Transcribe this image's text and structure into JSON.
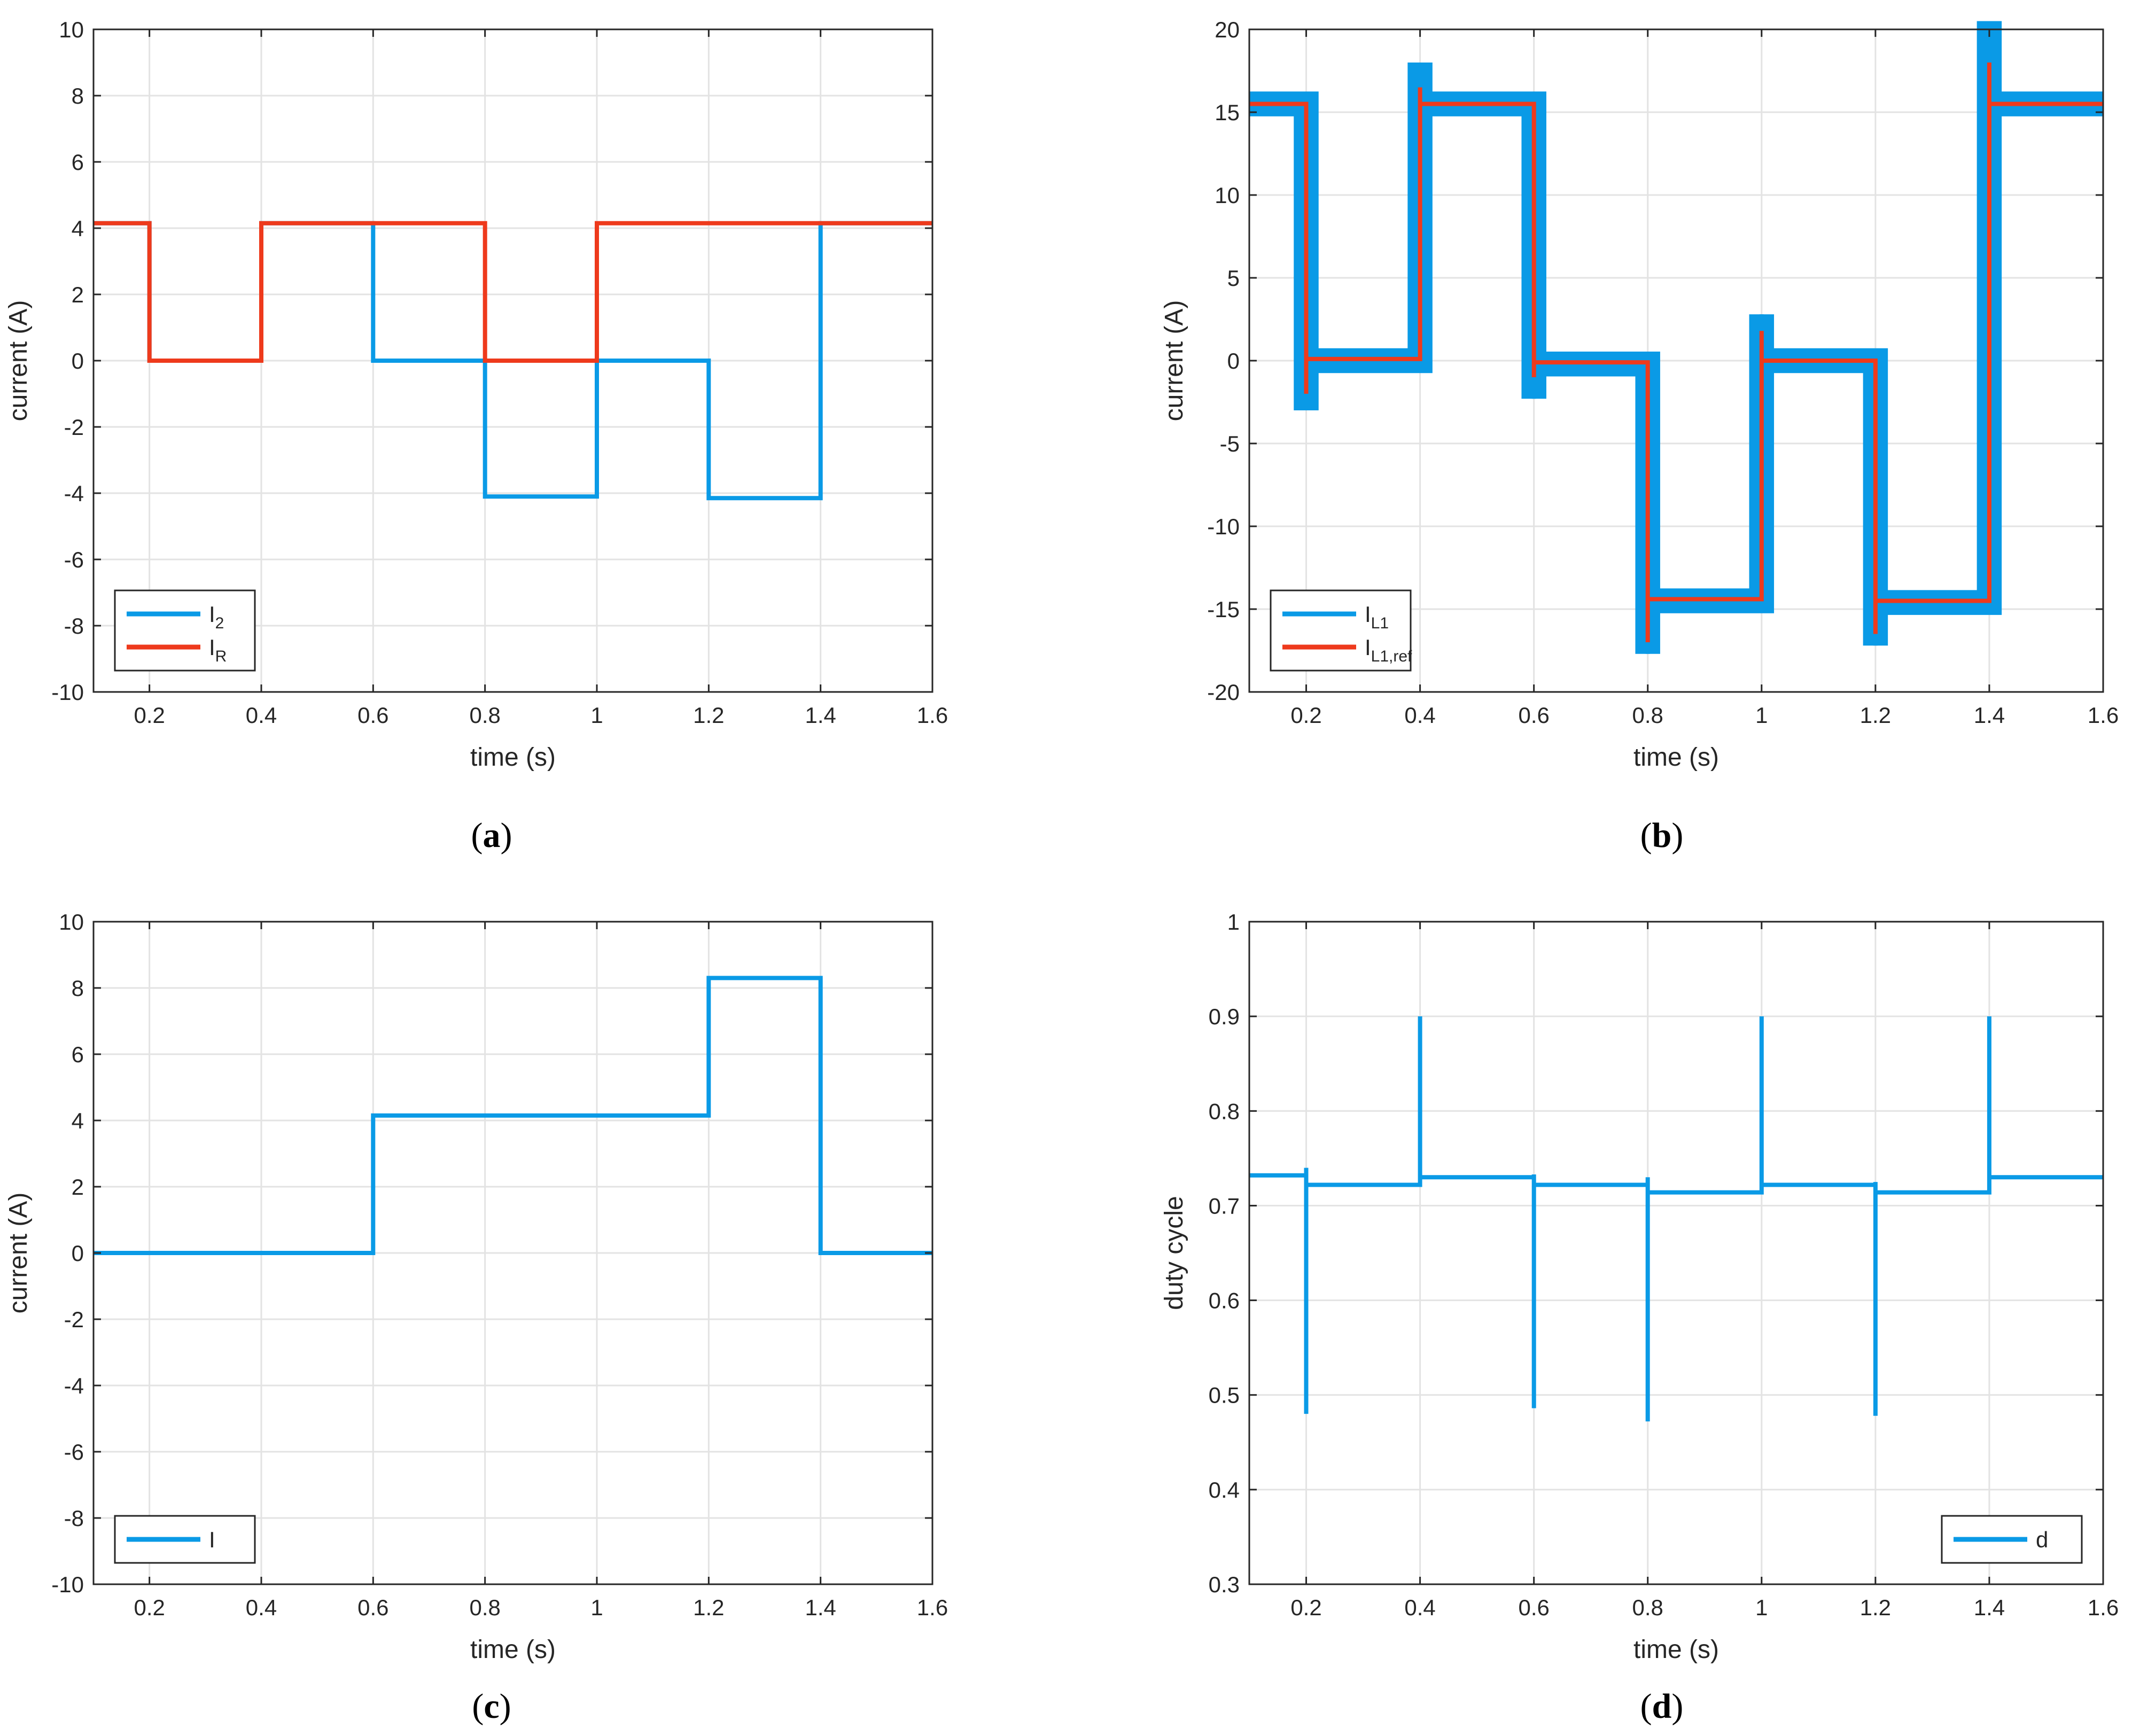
{
  "colors": {
    "blue": "#0a9ae6",
    "red": "#ee3a1c",
    "grid": "#e3e3e3",
    "axis": "#262626"
  },
  "chart_data": [
    {
      "id": "a",
      "type": "line",
      "caption": "a",
      "xlabel": "time (s)",
      "ylabel": "current (A)",
      "xlim": [
        0.1,
        1.6
      ],
      "ylim": [
        -10,
        10
      ],
      "xticks": [
        0.2,
        0.4,
        0.6,
        0.8,
        1,
        1.2,
        1.4,
        1.6
      ],
      "yticks": [
        -10,
        -8,
        -6,
        -4,
        -2,
        0,
        2,
        4,
        6,
        8,
        10
      ],
      "legend_position": "bottom-left",
      "series": [
        {
          "name": "I2",
          "label_main": "I",
          "label_sub": "2",
          "color": "#0a9ae6",
          "band": 0,
          "x": [
            0.1,
            0.2,
            0.2,
            0.4,
            0.4,
            0.6,
            0.6,
            0.8,
            0.8,
            1.0,
            1.0,
            1.2,
            1.2,
            1.4,
            1.4,
            1.6
          ],
          "y": [
            4.15,
            4.15,
            0,
            0,
            4.15,
            4.15,
            0,
            0,
            -4.1,
            -4.1,
            0,
            0,
            -4.15,
            -4.15,
            4.15,
            4.15
          ]
        },
        {
          "name": "IR",
          "label_main": "I",
          "label_sub": "R",
          "color": "#ee3a1c",
          "band": 0,
          "x": [
            0.1,
            0.2,
            0.2,
            0.4,
            0.4,
            0.8,
            0.8,
            1.0,
            1.0,
            1.6
          ],
          "y": [
            4.15,
            4.15,
            0,
            0,
            4.15,
            4.15,
            0,
            0,
            4.15,
            4.15
          ]
        }
      ]
    },
    {
      "id": "b",
      "type": "line",
      "caption": "b",
      "xlabel": "time (s)",
      "ylabel": "current (A)",
      "xlim": [
        0.1,
        1.6
      ],
      "ylim": [
        -20,
        20
      ],
      "xticks": [
        0.2,
        0.4,
        0.6,
        0.8,
        1,
        1.2,
        1.4,
        1.6
      ],
      "yticks": [
        -20,
        -15,
        -10,
        -5,
        0,
        5,
        10,
        15,
        20
      ],
      "legend_position": "bottom-left",
      "series": [
        {
          "name": "IL1",
          "label_main": "I",
          "label_sub": "L1",
          "color": "#0a9ae6",
          "band": 0.75,
          "x": [
            0.1,
            0.2,
            0.2,
            0.2,
            0.4,
            0.4,
            0.4,
            0.6,
            0.6,
            0.6,
            0.8,
            0.8,
            0.8,
            1.0,
            1.0,
            1.0,
            1.2,
            1.2,
            1.2,
            1.4,
            1.4,
            1.4,
            1.6
          ],
          "y": [
            15.5,
            15.5,
            -3.0,
            0,
            0,
            18.0,
            15.5,
            15.5,
            -2.3,
            -0.2,
            -0.2,
            -17.7,
            -14.5,
            -14.5,
            2.8,
            0,
            0,
            -17.2,
            -14.6,
            -14.6,
            20.5,
            15.5,
            15.5
          ]
        },
        {
          "name": "IL1,ref",
          "label_main": "I",
          "label_sub": "L1,ref",
          "color": "#ee3a1c",
          "band": 0,
          "x": [
            0.1,
            0.2,
            0.2,
            0.2,
            0.4,
            0.4,
            0.4,
            0.6,
            0.6,
            0.6,
            0.8,
            0.8,
            0.8,
            1.0,
            1.0,
            1.0,
            1.2,
            1.2,
            1.2,
            1.4,
            1.4,
            1.4,
            1.6
          ],
          "y": [
            15.5,
            15.5,
            -2.0,
            0.1,
            0.1,
            16.5,
            15.5,
            15.5,
            -1.0,
            -0.1,
            -0.1,
            -17.0,
            -14.4,
            -14.4,
            1.8,
            0,
            0,
            -16.5,
            -14.5,
            -14.5,
            18.0,
            15.5,
            15.5
          ]
        }
      ]
    },
    {
      "id": "c",
      "type": "line",
      "caption": "c",
      "xlabel": "time (s)",
      "ylabel": "current (A)",
      "xlim": [
        0.1,
        1.6
      ],
      "ylim": [
        -10,
        10
      ],
      "xticks": [
        0.2,
        0.4,
        0.6,
        0.8,
        1,
        1.2,
        1.4,
        1.6
      ],
      "yticks": [
        -10,
        -8,
        -6,
        -4,
        -2,
        0,
        2,
        4,
        6,
        8,
        10
      ],
      "legend_position": "bottom-left",
      "series": [
        {
          "name": "I",
          "label_main": "I",
          "label_sub": "",
          "color": "#0a9ae6",
          "band": 0,
          "x": [
            0.1,
            0.6,
            0.6,
            1.2,
            1.2,
            1.4,
            1.4,
            1.6
          ],
          "y": [
            0,
            0,
            4.15,
            4.15,
            8.3,
            8.3,
            0,
            0
          ]
        }
      ]
    },
    {
      "id": "d",
      "type": "line",
      "caption": "d",
      "xlabel": "time (s)",
      "ylabel": "duty cycle",
      "xlim": [
        0.1,
        1.6
      ],
      "ylim": [
        0.3,
        1
      ],
      "xticks": [
        0.2,
        0.4,
        0.6,
        0.8,
        1,
        1.2,
        1.4,
        1.6
      ],
      "yticks": [
        0.3,
        0.4,
        0.5,
        0.6,
        0.7,
        0.8,
        0.9,
        1
      ],
      "legend_position": "bottom-right",
      "series": [
        {
          "name": "d",
          "label_main": "d",
          "label_sub": "",
          "color": "#0a9ae6",
          "band": 0,
          "x": [
            0.1,
            0.2,
            0.2,
            0.2,
            0.2,
            0.4,
            0.4,
            0.4,
            0.6,
            0.6,
            0.6,
            0.6,
            0.8,
            0.8,
            0.8,
            0.8,
            1.0,
            1.0,
            1.0,
            1.2,
            1.2,
            1.2,
            1.2,
            1.4,
            1.4,
            1.4,
            1.6
          ],
          "y": [
            0.732,
            0.732,
            0.74,
            0.48,
            0.722,
            0.722,
            0.9,
            0.73,
            0.73,
            0.733,
            0.486,
            0.722,
            0.722,
            0.73,
            0.472,
            0.714,
            0.714,
            0.9,
            0.722,
            0.722,
            0.725,
            0.478,
            0.714,
            0.714,
            0.9,
            0.73,
            0.73
          ]
        }
      ]
    }
  ]
}
